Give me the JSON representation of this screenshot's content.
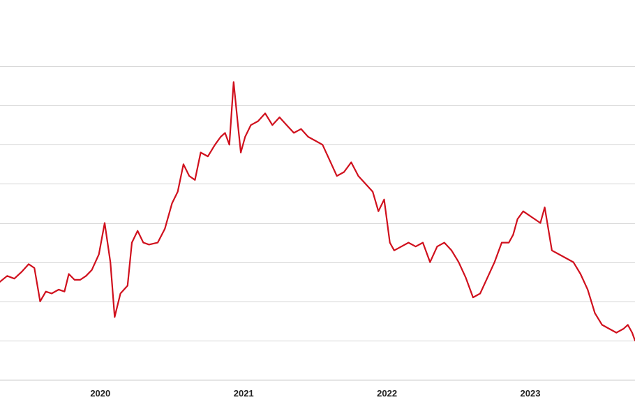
{
  "chart_data": {
    "type": "line",
    "title": "",
    "xlabel": "",
    "ylabel": "",
    "x_tick_labels": [
      "2020",
      "2021",
      "2022",
      "2023"
    ],
    "x_tick_values": [
      2020.0,
      2021.0,
      2022.0,
      2023.0
    ],
    "xlim": [
      2019.3,
      2023.73
    ],
    "ylim": [
      0,
      8
    ],
    "y_gridlines": [
      0,
      1,
      2,
      3,
      4,
      5,
      6,
      7,
      8
    ],
    "grid": "horizontal",
    "legend": "none",
    "series": [
      {
        "color": "#d0101d",
        "points": [
          [
            2019.3,
            2.5
          ],
          [
            2019.35,
            2.65
          ],
          [
            2019.4,
            2.58
          ],
          [
            2019.45,
            2.75
          ],
          [
            2019.5,
            2.95
          ],
          [
            2019.54,
            2.85
          ],
          [
            2019.58,
            2.0
          ],
          [
            2019.62,
            2.25
          ],
          [
            2019.66,
            2.2
          ],
          [
            2019.71,
            2.3
          ],
          [
            2019.75,
            2.25
          ],
          [
            2019.78,
            2.7
          ],
          [
            2019.82,
            2.55
          ],
          [
            2019.86,
            2.55
          ],
          [
            2019.9,
            2.65
          ],
          [
            2019.94,
            2.8
          ],
          [
            2019.99,
            3.2
          ],
          [
            2020.03,
            4.0
          ],
          [
            2020.07,
            3.0
          ],
          [
            2020.1,
            1.6
          ],
          [
            2020.14,
            2.2
          ],
          [
            2020.19,
            2.4
          ],
          [
            2020.22,
            3.5
          ],
          [
            2020.26,
            3.8
          ],
          [
            2020.3,
            3.5
          ],
          [
            2020.34,
            3.45
          ],
          [
            2020.4,
            3.5
          ],
          [
            2020.45,
            3.85
          ],
          [
            2020.5,
            4.5
          ],
          [
            2020.54,
            4.8
          ],
          [
            2020.58,
            5.5
          ],
          [
            2020.62,
            5.2
          ],
          [
            2020.66,
            5.1
          ],
          [
            2020.7,
            5.8
          ],
          [
            2020.75,
            5.7
          ],
          [
            2020.8,
            6.0
          ],
          [
            2020.84,
            6.2
          ],
          [
            2020.87,
            6.3
          ],
          [
            2020.9,
            6.0
          ],
          [
            2020.93,
            7.6
          ],
          [
            2020.96,
            6.5
          ],
          [
            2020.98,
            5.8
          ],
          [
            2021.01,
            6.2
          ],
          [
            2021.05,
            6.5
          ],
          [
            2021.1,
            6.6
          ],
          [
            2021.15,
            6.8
          ],
          [
            2021.2,
            6.5
          ],
          [
            2021.25,
            6.7
          ],
          [
            2021.3,
            6.5
          ],
          [
            2021.35,
            6.3
          ],
          [
            2021.4,
            6.4
          ],
          [
            2021.45,
            6.2
          ],
          [
            2021.5,
            6.1
          ],
          [
            2021.55,
            6.0
          ],
          [
            2021.6,
            5.6
          ],
          [
            2021.65,
            5.2
          ],
          [
            2021.7,
            5.3
          ],
          [
            2021.75,
            5.55
          ],
          [
            2021.8,
            5.2
          ],
          [
            2021.85,
            5.0
          ],
          [
            2021.9,
            4.8
          ],
          [
            2021.94,
            4.3
          ],
          [
            2021.98,
            4.6
          ],
          [
            2022.02,
            3.5
          ],
          [
            2022.05,
            3.3
          ],
          [
            2022.1,
            3.4
          ],
          [
            2022.15,
            3.5
          ],
          [
            2022.2,
            3.4
          ],
          [
            2022.25,
            3.5
          ],
          [
            2022.3,
            3.0
          ],
          [
            2022.35,
            3.4
          ],
          [
            2022.4,
            3.5
          ],
          [
            2022.45,
            3.3
          ],
          [
            2022.5,
            3.0
          ],
          [
            2022.55,
            2.6
          ],
          [
            2022.6,
            2.1
          ],
          [
            2022.65,
            2.2
          ],
          [
            2022.7,
            2.6
          ],
          [
            2022.75,
            3.0
          ],
          [
            2022.8,
            3.5
          ],
          [
            2022.85,
            3.5
          ],
          [
            2022.88,
            3.7
          ],
          [
            2022.91,
            4.1
          ],
          [
            2022.95,
            4.3
          ],
          [
            2022.99,
            4.2
          ],
          [
            2023.03,
            4.1
          ],
          [
            2023.07,
            4.0
          ],
          [
            2023.1,
            4.4
          ],
          [
            2023.15,
            3.3
          ],
          [
            2023.2,
            3.2
          ],
          [
            2023.25,
            3.1
          ],
          [
            2023.3,
            3.0
          ],
          [
            2023.35,
            2.7
          ],
          [
            2023.4,
            2.3
          ],
          [
            2023.45,
            1.7
          ],
          [
            2023.5,
            1.4
          ],
          [
            2023.55,
            1.3
          ],
          [
            2023.6,
            1.2
          ],
          [
            2023.65,
            1.3
          ],
          [
            2023.68,
            1.4
          ],
          [
            2023.71,
            1.2
          ],
          [
            2023.73,
            1.0
          ]
        ]
      }
    ]
  }
}
